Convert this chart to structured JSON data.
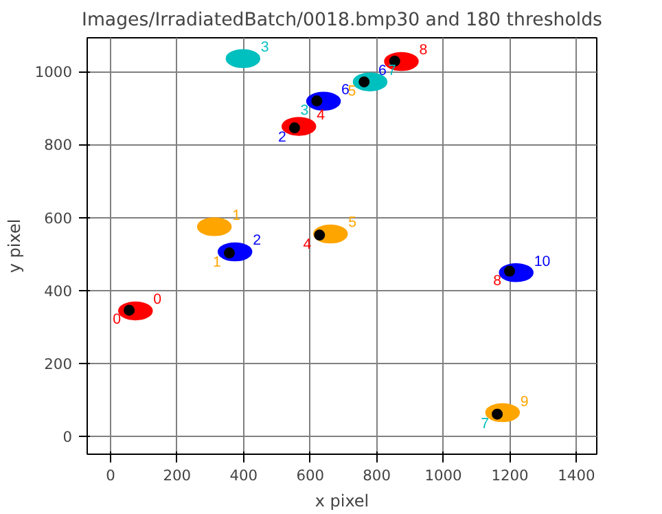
{
  "chart_data": {
    "type": "scatter",
    "title": "Images/IrradiatedBatch/0018.bmp30 and 180 thresholds",
    "xlabel": "x pixel",
    "ylabel": "y pixel",
    "xlim": [
      -70,
      1461
    ],
    "ylim": [
      -49,
      1093
    ],
    "xticks": [
      0,
      200,
      400,
      600,
      800,
      1000,
      1200,
      1400
    ],
    "yticks": [
      0,
      200,
      400,
      600,
      800,
      1000
    ],
    "grid": true,
    "marker": "circle",
    "series": [
      {
        "colors": [
          "#ff0000",
          "#ffa500",
          "#0000ff",
          "#00bfbf",
          "#ff0000",
          "#ffa500",
          "#0000ff",
          "#00bfbf",
          "#ff0000",
          "#ffa500",
          "#0000ff"
        ],
        "x": [
          75,
          312,
          374,
          398,
          566,
          661,
          640,
          780,
          874,
          1178,
          1219
        ],
        "values": [
          344,
          575,
          506,
          1036,
          850,
          555,
          919,
          972,
          1028,
          65,
          449
        ]
      },
      {
        "color": "#000000",
        "x": [
          56,
          357,
          553,
          620,
          628,
          762,
          854,
          1162,
          1199
        ],
        "values": [
          346,
          503,
          846,
          920,
          552,
          972,
          1029,
          61,
          453
        ]
      }
    ],
    "annotations": [
      {
        "text": "0",
        "x": 75,
        "y": 344
      },
      {
        "text": "1",
        "x": 312,
        "y": 575
      },
      {
        "text": "2",
        "x": 374,
        "y": 506
      },
      {
        "text": "3",
        "x": 398,
        "y": 1036
      },
      {
        "text": "4",
        "x": 566,
        "y": 850
      },
      {
        "text": "5",
        "x": 661,
        "y": 555
      },
      {
        "text": "6",
        "x": 640,
        "y": 919
      },
      {
        "text": "7",
        "x": 780,
        "y": 972
      },
      {
        "text": "8",
        "x": 874,
        "y": 1028
      },
      {
        "text": "9",
        "x": 1178,
        "y": 65
      },
      {
        "text": "10",
        "x": 1219,
        "y": 449
      },
      {
        "text": "0",
        "x": 56,
        "y": 346
      },
      {
        "text": "1",
        "x": 357,
        "y": 503
      },
      {
        "text": "2",
        "x": 553,
        "y": 846
      },
      {
        "text": "3",
        "x": 620,
        "y": 920
      },
      {
        "text": "4",
        "x": 628,
        "y": 552
      },
      {
        "text": "5",
        "x": 762,
        "y": 972
      },
      {
        "text": "6",
        "x": 854,
        "y": 1029
      },
      {
        "text": "7",
        "x": 1162,
        "y": 61
      },
      {
        "text": "8",
        "x": 1199,
        "y": 453
      }
    ]
  }
}
